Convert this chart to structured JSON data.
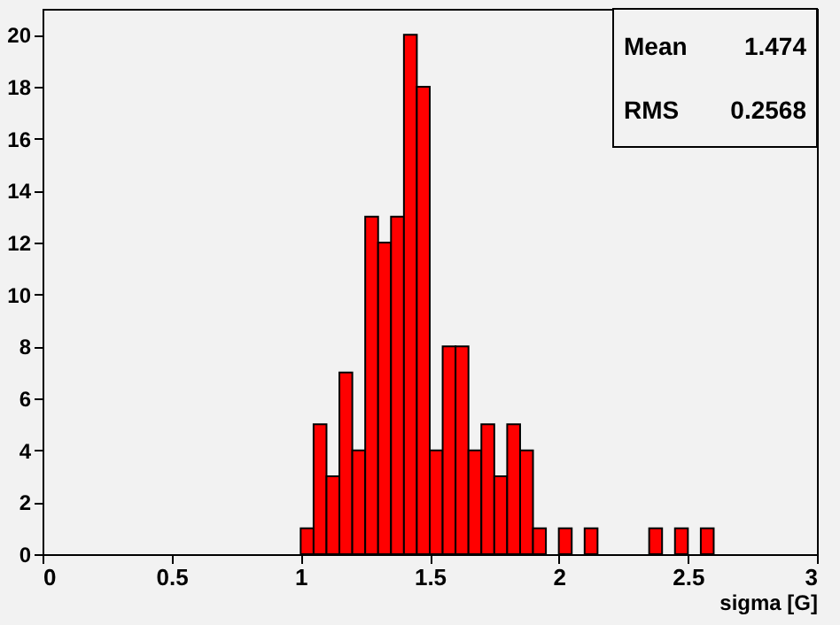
{
  "chart_data": {
    "type": "histogram",
    "xlabel": "sigma [G]",
    "bins": [
      1.0,
      1.05,
      1.1,
      1.15,
      1.2,
      1.25,
      1.3,
      1.35,
      1.4,
      1.45,
      1.5,
      1.55,
      1.6,
      1.65,
      1.7,
      1.75,
      1.8,
      1.85,
      1.9,
      1.95,
      2.0,
      2.05,
      2.1,
      2.15,
      2.2,
      2.25,
      2.3,
      2.35,
      2.4,
      2.45,
      2.5,
      2.55,
      2.6
    ],
    "values": [
      1,
      5,
      3,
      7,
      4,
      13,
      12,
      13,
      20,
      18,
      4,
      8,
      8,
      4,
      5,
      3,
      5,
      4,
      1,
      0,
      1,
      0,
      1,
      0,
      0,
      0,
      0,
      1,
      0,
      1,
      0,
      1
    ],
    "color": "#ff0000",
    "xlim": [
      0,
      3
    ],
    "xticks": [
      0,
      0.5,
      1,
      1.5,
      2,
      2.5,
      3
    ],
    "ylim": [
      0,
      21
    ],
    "yticks": [
      0,
      2,
      4,
      6,
      8,
      10,
      12,
      14,
      16,
      18,
      20
    ],
    "grid": false,
    "annotations": [
      "Mean 1.474",
      "RMS 0.2568"
    ]
  }
}
